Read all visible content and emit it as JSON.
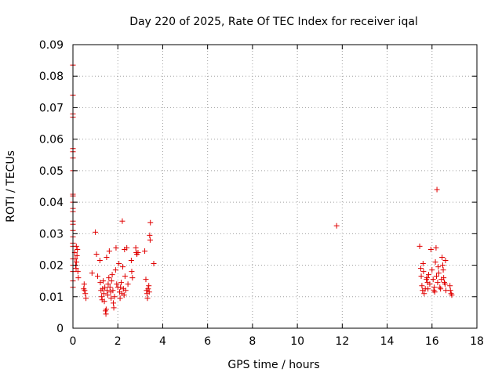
{
  "chart_data": {
    "type": "scatter",
    "title": "Day 220 of 2025, Rate Of TEC Index for receiver iqal",
    "xlabel": "GPS time / hours",
    "ylabel": "ROTI / TECUs",
    "xlim": [
      0,
      18
    ],
    "ylim": [
      0,
      0.09
    ],
    "grid": true,
    "xticks": [
      "0",
      "2",
      "4",
      "6",
      "8",
      "10",
      "12",
      "14",
      "16",
      "18"
    ],
    "yticks": [
      "0",
      "0.01",
      "0.02",
      "0.03",
      "0.04",
      "0.05",
      "0.06",
      "0.07",
      "0.08",
      "0.09"
    ],
    "marker": "+",
    "color": "#e00000",
    "series": [
      {
        "name": "ROTI",
        "points": [
          [
            0.0,
            0.0835
          ],
          [
            0.0,
            0.074
          ],
          [
            0.0,
            0.068
          ],
          [
            0.0,
            0.067
          ],
          [
            0.0,
            0.057
          ],
          [
            0.0,
            0.056
          ],
          [
            0.0,
            0.054
          ],
          [
            0.0,
            0.05
          ],
          [
            0.0,
            0.0425
          ],
          [
            0.0,
            0.042
          ],
          [
            0.0,
            0.04
          ],
          [
            0.0,
            0.038
          ],
          [
            0.0,
            0.037
          ],
          [
            0.0,
            0.034
          ],
          [
            0.0,
            0.033
          ],
          [
            0.0,
            0.031
          ],
          [
            0.0,
            0.029
          ],
          [
            0.0,
            0.027
          ],
          [
            0.0,
            0.026
          ],
          [
            0.0,
            0.022
          ],
          [
            0.0,
            0.02
          ],
          [
            0.0,
            0.018
          ],
          [
            0.0,
            0.015
          ],
          [
            0.0,
            0.013
          ],
          [
            0.08,
            0.024
          ],
          [
            0.1,
            0.022
          ],
          [
            0.12,
            0.02
          ],
          [
            0.14,
            0.019
          ],
          [
            0.16,
            0.021
          ],
          [
            0.18,
            0.023
          ],
          [
            0.2,
            0.025
          ],
          [
            0.22,
            0.018
          ],
          [
            0.24,
            0.016
          ],
          [
            0.15,
            0.026
          ],
          [
            0.5,
            0.014
          ],
          [
            0.52,
            0.012
          ],
          [
            0.55,
            0.011
          ],
          [
            0.58,
            0.0095
          ],
          [
            0.48,
            0.0125
          ],
          [
            0.85,
            0.0175
          ],
          [
            1.0,
            0.0305
          ],
          [
            1.05,
            0.0235
          ],
          [
            1.1,
            0.0165
          ],
          [
            1.2,
            0.0215
          ],
          [
            1.22,
            0.0145
          ],
          [
            1.25,
            0.012
          ],
          [
            1.28,
            0.01
          ],
          [
            1.3,
            0.009
          ],
          [
            1.32,
            0.0125
          ],
          [
            1.35,
            0.015
          ],
          [
            1.38,
            0.011
          ],
          [
            1.4,
            0.0085
          ],
          [
            1.42,
            0.013
          ],
          [
            1.45,
            0.0055
          ],
          [
            1.47,
            0.0045
          ],
          [
            1.48,
            0.006
          ],
          [
            1.5,
            0.0225
          ],
          [
            1.52,
            0.012
          ],
          [
            1.55,
            0.0105
          ],
          [
            1.57,
            0.014
          ],
          [
            1.6,
            0.016
          ],
          [
            1.62,
            0.0245
          ],
          [
            1.65,
            0.013
          ],
          [
            1.68,
            0.0115
          ],
          [
            1.7,
            0.0095
          ],
          [
            1.72,
            0.015
          ],
          [
            1.75,
            0.017
          ],
          [
            1.78,
            0.012
          ],
          [
            1.8,
            0.008
          ],
          [
            1.82,
            0.0065
          ],
          [
            1.85,
            0.01
          ],
          [
            1.9,
            0.0185
          ],
          [
            1.92,
            0.0255
          ],
          [
            1.95,
            0.014
          ],
          [
            2.0,
            0.013
          ],
          [
            2.05,
            0.0205
          ],
          [
            2.08,
            0.0115
          ],
          [
            2.1,
            0.0095
          ],
          [
            2.12,
            0.013
          ],
          [
            2.15,
            0.0145
          ],
          [
            2.18,
            0.011
          ],
          [
            2.2,
            0.034
          ],
          [
            2.22,
            0.0195
          ],
          [
            2.25,
            0.0125
          ],
          [
            2.28,
            0.0105
          ],
          [
            2.3,
            0.025
          ],
          [
            2.32,
            0.0165
          ],
          [
            2.35,
            0.012
          ],
          [
            2.4,
            0.0255
          ],
          [
            2.45,
            0.014
          ],
          [
            2.6,
            0.0215
          ],
          [
            2.62,
            0.018
          ],
          [
            2.65,
            0.016
          ],
          [
            2.8,
            0.0255
          ],
          [
            2.82,
            0.024
          ],
          [
            2.85,
            0.0235
          ],
          [
            2.9,
            0.024
          ],
          [
            3.2,
            0.0245
          ],
          [
            3.25,
            0.0155
          ],
          [
            3.28,
            0.012
          ],
          [
            3.3,
            0.011
          ],
          [
            3.32,
            0.0095
          ],
          [
            3.35,
            0.0125
          ],
          [
            3.38,
            0.0135
          ],
          [
            3.4,
            0.0115
          ],
          [
            3.42,
            0.0295
          ],
          [
            3.44,
            0.028
          ],
          [
            3.45,
            0.0335
          ],
          [
            3.6,
            0.0205
          ],
          [
            11.75,
            0.0325
          ],
          [
            15.45,
            0.026
          ],
          [
            15.5,
            0.019
          ],
          [
            15.52,
            0.0165
          ],
          [
            15.55,
            0.0135
          ],
          [
            15.58,
            0.012
          ],
          [
            15.6,
            0.0205
          ],
          [
            15.62,
            0.018
          ],
          [
            15.65,
            0.011
          ],
          [
            15.7,
            0.0125
          ],
          [
            15.75,
            0.0155
          ],
          [
            15.78,
            0.016
          ],
          [
            15.8,
            0.0145
          ],
          [
            15.82,
            0.0125
          ],
          [
            15.85,
            0.017
          ],
          [
            15.9,
            0.014
          ],
          [
            15.95,
            0.025
          ],
          [
            16.0,
            0.0185
          ],
          [
            16.05,
            0.0155
          ],
          [
            16.08,
            0.012
          ],
          [
            16.1,
            0.013
          ],
          [
            16.12,
            0.0115
          ],
          [
            16.15,
            0.021
          ],
          [
            16.18,
            0.0255
          ],
          [
            16.2,
            0.0165
          ],
          [
            16.22,
            0.044
          ],
          [
            16.25,
            0.0145
          ],
          [
            16.28,
            0.0195
          ],
          [
            16.3,
            0.0175
          ],
          [
            16.35,
            0.013
          ],
          [
            16.38,
            0.0125
          ],
          [
            16.42,
            0.0155
          ],
          [
            16.45,
            0.0225
          ],
          [
            16.48,
            0.02
          ],
          [
            16.5,
            0.0185
          ],
          [
            16.52,
            0.016
          ],
          [
            16.55,
            0.0145
          ],
          [
            16.58,
            0.014
          ],
          [
            16.6,
            0.0215
          ],
          [
            16.62,
            0.012
          ],
          [
            16.8,
            0.0135
          ],
          [
            16.82,
            0.012
          ],
          [
            16.85,
            0.011
          ],
          [
            16.88,
            0.0105
          ]
        ]
      }
    ]
  }
}
